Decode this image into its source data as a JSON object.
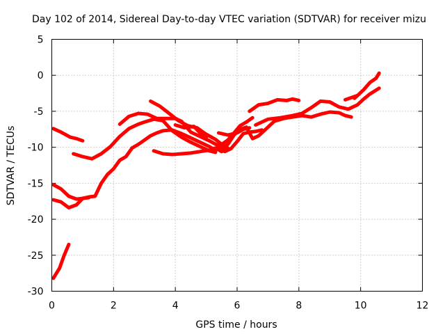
{
  "chart_data": {
    "type": "line",
    "title": "Day 102 of 2014, Sidereal Day-to-day VTEC variation (SDTVAR) for receiver mizu",
    "xlabel": "GPS time / hours",
    "ylabel": "SDTVAR / TECUs",
    "xlim": [
      0,
      12
    ],
    "ylim": [
      -30,
      5
    ],
    "xticks": [
      0,
      2,
      4,
      6,
      8,
      10,
      12
    ],
    "yticks": [
      -30,
      -25,
      -20,
      -15,
      -10,
      -5,
      0,
      5
    ],
    "grid": true,
    "color": "#ff0000",
    "series": [
      {
        "name": "s1",
        "points": [
          [
            0.05,
            -28.2
          ],
          [
            0.25,
            -26.8
          ],
          [
            0.4,
            -25
          ],
          [
            0.55,
            -23.5
          ]
        ]
      },
      {
        "name": "s2",
        "points": [
          [
            0.05,
            -7.4
          ],
          [
            0.3,
            -7.9
          ],
          [
            0.6,
            -8.6
          ],
          [
            0.8,
            -8.8
          ],
          [
            1.0,
            -9.1
          ]
        ]
      },
      {
        "name": "s3",
        "points": [
          [
            0.05,
            -15.2
          ],
          [
            0.3,
            -15.8
          ],
          [
            0.55,
            -16.8
          ],
          [
            0.8,
            -17.2
          ],
          [
            1.0,
            -17.1
          ],
          [
            1.2,
            -17.0
          ]
        ]
      },
      {
        "name": "s4",
        "points": [
          [
            0.05,
            -17.3
          ],
          [
            0.3,
            -17.6
          ],
          [
            0.55,
            -18.4
          ],
          [
            0.8,
            -18.0
          ],
          [
            1.0,
            -17.1
          ],
          [
            1.2,
            -16.9
          ],
          [
            1.4,
            -16.8
          ],
          [
            1.6,
            -15.0
          ],
          [
            1.8,
            -13.8
          ],
          [
            2.0,
            -13.0
          ],
          [
            2.2,
            -11.8
          ],
          [
            2.4,
            -11.3
          ],
          [
            2.6,
            -10.1
          ],
          [
            2.8,
            -9.6
          ],
          [
            3.0,
            -9.0
          ],
          [
            3.2,
            -8.4
          ],
          [
            3.4,
            -8.0
          ],
          [
            3.6,
            -7.7
          ],
          [
            3.9,
            -7.6
          ],
          [
            4.2,
            -8.1
          ],
          [
            4.5,
            -8.7
          ],
          [
            4.8,
            -9.3
          ],
          [
            5.1,
            -9.9
          ],
          [
            5.3,
            -10.4
          ],
          [
            5.5,
            -10.1
          ],
          [
            5.7,
            -9.6
          ],
          [
            5.9,
            -8.3
          ],
          [
            6.1,
            -7.5
          ],
          [
            6.3,
            -7.2
          ],
          [
            6.5,
            -8.8
          ],
          [
            6.7,
            -8.4
          ],
          [
            6.9,
            -7.6
          ],
          [
            7.2,
            -6.4
          ],
          [
            7.5,
            -6.0
          ],
          [
            7.8,
            -5.8
          ],
          [
            8.1,
            -5.6
          ],
          [
            8.4,
            -5.8
          ],
          [
            8.7,
            -5.4
          ],
          [
            9.0,
            -5.1
          ],
          [
            9.3,
            -5.2
          ],
          [
            9.5,
            -5.6
          ],
          [
            9.7,
            -5.8
          ]
        ]
      },
      {
        "name": "s5",
        "points": [
          [
            0.7,
            -10.9
          ],
          [
            1.0,
            -11.3
          ],
          [
            1.3,
            -11.6
          ],
          [
            1.6,
            -10.9
          ],
          [
            1.9,
            -9.9
          ],
          [
            2.2,
            -8.5
          ],
          [
            2.5,
            -7.4
          ],
          [
            2.8,
            -6.8
          ],
          [
            3.0,
            -6.5
          ],
          [
            3.3,
            -6.1
          ],
          [
            3.6,
            -6.3
          ],
          [
            3.9,
            -7.7
          ],
          [
            4.2,
            -8.6
          ],
          [
            4.5,
            -9.3
          ],
          [
            4.8,
            -9.9
          ],
          [
            5.1,
            -10.5
          ],
          [
            5.3,
            -10.7
          ]
        ]
      },
      {
        "name": "s6",
        "points": [
          [
            2.2,
            -6.8
          ],
          [
            2.5,
            -5.7
          ],
          [
            2.8,
            -5.3
          ],
          [
            3.1,
            -5.4
          ],
          [
            3.4,
            -6.0
          ],
          [
            3.7,
            -6.0
          ],
          [
            4.0,
            -6.0
          ],
          [
            4.2,
            -6.4
          ],
          [
            4.5,
            -7.9
          ],
          [
            4.8,
            -8.5
          ],
          [
            5.1,
            -9.1
          ],
          [
            5.4,
            -9.8
          ],
          [
            5.6,
            -10.6
          ],
          [
            5.8,
            -10.2
          ],
          [
            6.0,
            -9.2
          ],
          [
            6.2,
            -8.1
          ],
          [
            6.4,
            -7.9
          ],
          [
            6.6,
            -7.8
          ],
          [
            6.8,
            -7.6
          ]
        ]
      },
      {
        "name": "s7",
        "points": [
          [
            3.2,
            -3.6
          ],
          [
            3.5,
            -4.3
          ],
          [
            3.8,
            -5.3
          ],
          [
            4.1,
            -6.3
          ],
          [
            4.4,
            -7.0
          ],
          [
            4.7,
            -7.3
          ],
          [
            5.0,
            -8.2
          ],
          [
            5.3,
            -8.9
          ],
          [
            5.5,
            -9.6
          ],
          [
            5.7,
            -9.0
          ],
          [
            5.9,
            -8.0
          ],
          [
            6.1,
            -7.0
          ],
          [
            6.3,
            -6.5
          ],
          [
            6.5,
            -5.9
          ]
        ]
      },
      {
        "name": "s8",
        "points": [
          [
            4.0,
            -6.9
          ],
          [
            4.3,
            -7.3
          ],
          [
            4.6,
            -7.1
          ],
          [
            4.8,
            -8.0
          ],
          [
            5.0,
            -8.6
          ]
        ]
      },
      {
        "name": "s9",
        "points": [
          [
            3.3,
            -10.5
          ],
          [
            3.6,
            -10.9
          ],
          [
            3.9,
            -11.0
          ],
          [
            4.2,
            -10.9
          ],
          [
            4.5,
            -10.8
          ],
          [
            4.8,
            -10.6
          ],
          [
            5.1,
            -10.4
          ],
          [
            5.3,
            -10.1
          ],
          [
            5.5,
            -10.6
          ],
          [
            5.7,
            -10.1
          ]
        ]
      },
      {
        "name": "s10",
        "points": [
          [
            5.4,
            -8.0
          ],
          [
            5.7,
            -8.3
          ],
          [
            6.0,
            -8.0
          ],
          [
            6.2,
            -7.5
          ],
          [
            6.4,
            -7.3
          ]
        ]
      },
      {
        "name": "s11",
        "points": [
          [
            6.4,
            -5.0
          ],
          [
            6.7,
            -4.1
          ],
          [
            7.0,
            -3.9
          ],
          [
            7.3,
            -3.4
          ],
          [
            7.6,
            -3.5
          ],
          [
            7.8,
            -3.3
          ],
          [
            8.0,
            -3.5
          ]
        ]
      },
      {
        "name": "s12",
        "points": [
          [
            6.6,
            -6.9
          ],
          [
            7.0,
            -6.1
          ],
          [
            7.4,
            -5.9
          ],
          [
            7.8,
            -5.6
          ],
          [
            8.1,
            -5.3
          ],
          [
            8.4,
            -4.5
          ],
          [
            8.7,
            -3.6
          ],
          [
            9.0,
            -3.7
          ],
          [
            9.3,
            -4.4
          ],
          [
            9.6,
            -4.7
          ],
          [
            9.9,
            -4.1
          ],
          [
            10.1,
            -3.3
          ],
          [
            10.3,
            -2.6
          ],
          [
            10.6,
            -1.8
          ]
        ]
      },
      {
        "name": "s13",
        "points": [
          [
            9.8,
            -3.2
          ],
          [
            10.1,
            -2.0
          ],
          [
            10.3,
            -1.0
          ],
          [
            10.5,
            -0.4
          ],
          [
            10.6,
            0.3
          ]
        ]
      },
      {
        "name": "s14",
        "points": [
          [
            9.5,
            -3.4
          ],
          [
            9.7,
            -3.1
          ],
          [
            9.9,
            -2.8
          ]
        ]
      }
    ]
  }
}
